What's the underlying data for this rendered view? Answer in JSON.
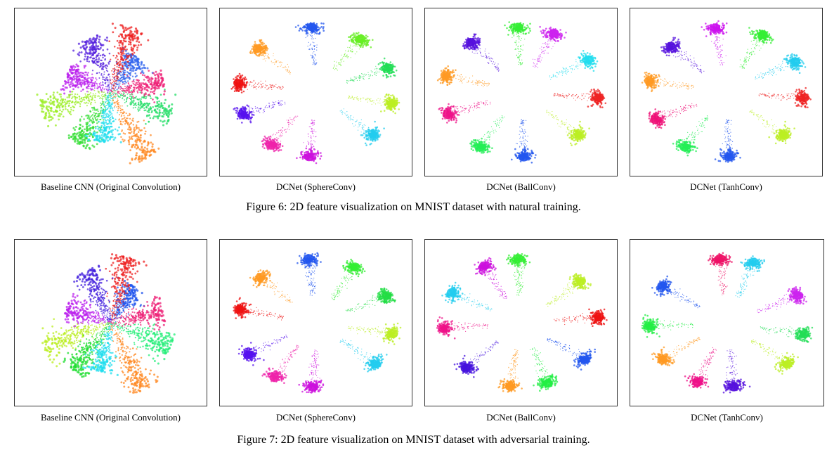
{
  "figures": [
    {
      "caption": "Figure 6: 2D feature visualization on MNIST dataset with natural training.",
      "panels": [
        {
          "label": "Baseline CNN (Original Convolution)",
          "pattern": "baseline",
          "clusters": [
            {
              "angle": 52,
              "color": "#3366ee"
            },
            {
              "angle": 72,
              "color": "#ee2222"
            },
            {
              "angle": 112,
              "color": "#5522dd"
            },
            {
              "angle": 158,
              "color": "#bb22ee"
            },
            {
              "angle": 195,
              "color": "#99ee22"
            },
            {
              "angle": 238,
              "color": "#33dd33"
            },
            {
              "angle": 262,
              "color": "#22ddee"
            },
            {
              "angle": 300,
              "color": "#ff8822"
            },
            {
              "angle": 340,
              "color": "#22dd66"
            },
            {
              "angle": 10,
              "color": "#ee2277"
            }
          ]
        },
        {
          "label": "DCNet (SphereConv)",
          "pattern": "ring",
          "clusters": [
            {
              "angle": 93,
              "color": "#2255ee"
            },
            {
              "angle": 55,
              "color": "#66ee22"
            },
            {
              "angle": 22,
              "color": "#22dd55"
            },
            {
              "angle": 350,
              "color": "#bbee22"
            },
            {
              "angle": 318,
              "color": "#22ccee"
            },
            {
              "angle": 265,
              "color": "#cc11dd"
            },
            {
              "angle": 235,
              "color": "#ee22aa"
            },
            {
              "angle": 200,
              "color": "#5511ee"
            },
            {
              "angle": 172,
              "color": "#ee1111"
            },
            {
              "angle": 138,
              "color": "#ff9922"
            }
          ]
        },
        {
          "label": "DCNet (BallConv)",
          "pattern": "ring",
          "clusters": [
            {
              "angle": 92,
              "color": "#33ee33"
            },
            {
              "angle": 65,
              "color": "#cc22ee"
            },
            {
              "angle": 30,
              "color": "#22ddee"
            },
            {
              "angle": 355,
              "color": "#ee2222"
            },
            {
              "angle": 318,
              "color": "#bbee22"
            },
            {
              "angle": 272,
              "color": "#2255ee"
            },
            {
              "angle": 238,
              "color": "#22ee55"
            },
            {
              "angle": 200,
              "color": "#ee1188"
            },
            {
              "angle": 165,
              "color": "#ff9922"
            },
            {
              "angle": 130,
              "color": "#5511dd"
            }
          ]
        },
        {
          "label": "DCNet (TanhConv)",
          "pattern": "ring",
          "clusters": [
            {
              "angle": 98,
              "color": "#cc11ee"
            },
            {
              "angle": 62,
              "color": "#33ee33"
            },
            {
              "angle": 28,
              "color": "#22ccee"
            },
            {
              "angle": 355,
              "color": "#ee2222"
            },
            {
              "angle": 318,
              "color": "#bbee22"
            },
            {
              "angle": 272,
              "color": "#2255ee"
            },
            {
              "angle": 238,
              "color": "#22ee55"
            },
            {
              "angle": 205,
              "color": "#ee1177"
            },
            {
              "angle": 170,
              "color": "#ff9922"
            },
            {
              "angle": 135,
              "color": "#5511dd"
            }
          ]
        }
      ]
    },
    {
      "caption": "Figure 7: 2D feature visualization on MNIST dataset with adversarial training.",
      "panels": [
        {
          "label": "Baseline CNN (Original Convolution)",
          "pattern": "baseline",
          "clusters": [
            {
              "angle": 55,
              "color": "#2255ee"
            },
            {
              "angle": 75,
              "color": "#ee2222"
            },
            {
              "angle": 115,
              "color": "#4422dd"
            },
            {
              "angle": 162,
              "color": "#bb22ee"
            },
            {
              "angle": 200,
              "color": "#bbee22"
            },
            {
              "angle": 232,
              "color": "#22dd33"
            },
            {
              "angle": 258,
              "color": "#22ddee"
            },
            {
              "angle": 296,
              "color": "#ff8822"
            },
            {
              "angle": 338,
              "color": "#22ee77"
            },
            {
              "angle": 12,
              "color": "#ee2277"
            }
          ]
        },
        {
          "label": "DCNet (SphereConv)",
          "pattern": "ring",
          "clusters": [
            {
              "angle": 95,
              "color": "#2255ee"
            },
            {
              "angle": 60,
              "color": "#33ee33"
            },
            {
              "angle": 25,
              "color": "#22dd44"
            },
            {
              "angle": 350,
              "color": "#bbee22"
            },
            {
              "angle": 320,
              "color": "#22ccee"
            },
            {
              "angle": 268,
              "color": "#cc11dd"
            },
            {
              "angle": 238,
              "color": "#ee22aa"
            },
            {
              "angle": 210,
              "color": "#5511ee"
            },
            {
              "angle": 168,
              "color": "#ee1111"
            },
            {
              "angle": 135,
              "color": "#ff9922"
            }
          ]
        },
        {
          "label": "DCNet (BallConv)",
          "pattern": "ring",
          "clusters": [
            {
              "angle": 92,
              "color": "#33ee33"
            },
            {
              "angle": 118,
              "color": "#cc11dd"
            },
            {
              "angle": 40,
              "color": "#bbee22"
            },
            {
              "angle": 5,
              "color": "#ee1111"
            },
            {
              "angle": 325,
              "color": "#2255ee"
            },
            {
              "angle": 290,
              "color": "#22ee44"
            },
            {
              "angle": 262,
              "color": "#ff9922"
            },
            {
              "angle": 225,
              "color": "#4411dd"
            },
            {
              "angle": 185,
              "color": "#ee1188"
            },
            {
              "angle": 152,
              "color": "#22ccee"
            }
          ]
        },
        {
          "label": "DCNet (TanhConv)",
          "pattern": "ring",
          "clusters": [
            {
              "angle": 95,
              "color": "#ee1166"
            },
            {
              "angle": 70,
              "color": "#22ccee"
            },
            {
              "angle": 25,
              "color": "#cc22ee"
            },
            {
              "angle": 350,
              "color": "#22dd55"
            },
            {
              "angle": 320,
              "color": "#bbee22"
            },
            {
              "angle": 275,
              "color": "#5511dd"
            },
            {
              "angle": 248,
              "color": "#ee1188"
            },
            {
              "angle": 215,
              "color": "#ff9922"
            },
            {
              "angle": 183,
              "color": "#22ee44"
            },
            {
              "angle": 145,
              "color": "#2255ee"
            }
          ]
        }
      ]
    }
  ]
}
